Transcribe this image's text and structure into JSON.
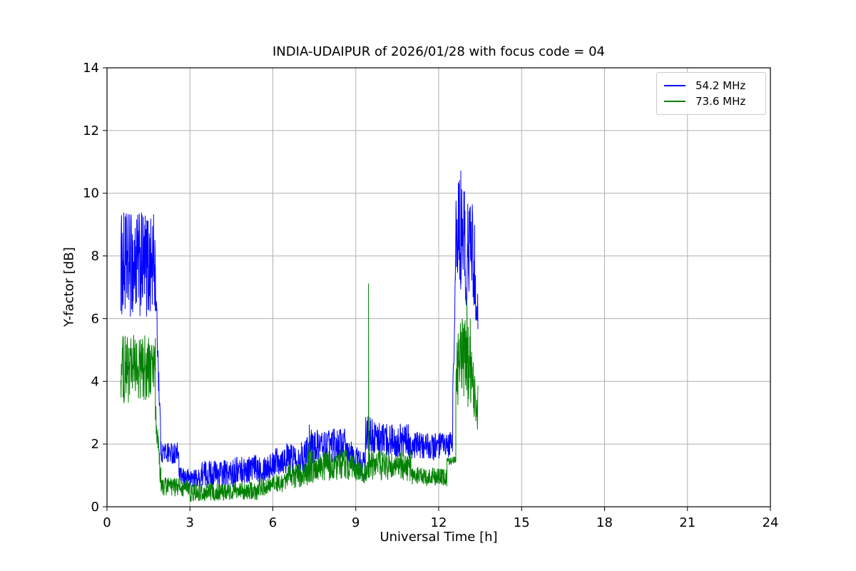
{
  "chart_data": {
    "type": "line",
    "title": "INDIA-UDAIPUR of 2026/01/28 with focus code = 04",
    "xlabel": "Universal Time [h]",
    "ylabel": "Y-factor [dB]",
    "xlim": [
      0,
      24
    ],
    "ylim": [
      0,
      14
    ],
    "xticks": [
      0,
      3,
      6,
      9,
      12,
      15,
      18,
      21,
      24
    ],
    "yticks": [
      0,
      2,
      4,
      6,
      8,
      10,
      12,
      14
    ],
    "grid": true,
    "grid_color": "#b0b0b0",
    "axis_color": "#000000",
    "legend_position": "upper right",
    "segments_format": "[x_start_h, x_end_h, y_mean_start_dB, y_mean_end_dB, noise_amplitude_dB]",
    "series": [
      {
        "name": "54.2 MHz",
        "color": "#0000ff",
        "x_range_h": [
          0.5,
          13.42
        ],
        "segments": [
          [
            0.5,
            1.75,
            7.7,
            7.7,
            1.7
          ],
          [
            1.75,
            1.95,
            7.2,
            2.1,
            0.6
          ],
          [
            1.95,
            2.6,
            1.75,
            1.7,
            0.35
          ],
          [
            2.6,
            3.4,
            0.95,
            0.9,
            0.3
          ],
          [
            3.4,
            4.6,
            1.05,
            1.05,
            0.45
          ],
          [
            4.6,
            6.0,
            1.15,
            1.3,
            0.45
          ],
          [
            6.0,
            7.2,
            1.5,
            1.6,
            0.5
          ],
          [
            7.2,
            7.45,
            1.9,
            1.9,
            0.6
          ],
          [
            7.45,
            8.6,
            1.9,
            2.0,
            0.55
          ],
          [
            8.6,
            9.35,
            1.8,
            1.3,
            0.45
          ],
          [
            9.35,
            9.65,
            2.3,
            2.3,
            0.6
          ],
          [
            9.65,
            10.9,
            2.15,
            2.1,
            0.55
          ],
          [
            10.9,
            12.35,
            1.95,
            1.9,
            0.45
          ],
          [
            12.35,
            12.5,
            1.9,
            2.2,
            0.4
          ],
          [
            12.5,
            12.6,
            2.5,
            7.2,
            0.9
          ],
          [
            12.6,
            12.95,
            8.6,
            8.5,
            1.9
          ],
          [
            12.95,
            13.05,
            7.3,
            7.4,
            1.0
          ],
          [
            13.05,
            13.3,
            8.4,
            8.0,
            1.7
          ],
          [
            13.3,
            13.42,
            7.0,
            6.1,
            0.8
          ]
        ],
        "spikes": [
          [
            7.32,
            2.62
          ],
          [
            12.8,
            10.72
          ]
        ]
      },
      {
        "name": "73.6 MHz",
        "color": "#008000",
        "x_range_h": [
          0.5,
          13.42
        ],
        "segments": [
          [
            0.5,
            1.75,
            4.4,
            4.4,
            1.1
          ],
          [
            1.75,
            1.95,
            3.0,
            0.85,
            0.45
          ],
          [
            1.95,
            3.0,
            0.65,
            0.6,
            0.3
          ],
          [
            3.0,
            5.5,
            0.45,
            0.5,
            0.3
          ],
          [
            5.5,
            6.5,
            0.65,
            0.8,
            0.32
          ],
          [
            6.5,
            7.25,
            0.95,
            1.05,
            0.4
          ],
          [
            7.25,
            7.45,
            1.3,
            1.3,
            0.7
          ],
          [
            7.45,
            9.0,
            1.3,
            1.35,
            0.5
          ],
          [
            9.0,
            9.42,
            1.1,
            1.1,
            0.35
          ],
          [
            9.42,
            9.5,
            1.2,
            1.2,
            0.3
          ],
          [
            9.5,
            11.0,
            1.35,
            1.3,
            0.5
          ],
          [
            11.0,
            12.3,
            1.0,
            0.95,
            0.3
          ],
          [
            12.3,
            12.62,
            1.45,
            1.5,
            0.12
          ],
          [
            12.62,
            13.0,
            4.2,
            5.0,
            1.4
          ],
          [
            13.0,
            13.2,
            4.8,
            4.6,
            1.6
          ],
          [
            13.2,
            13.42,
            4.0,
            3.1,
            0.9
          ]
        ],
        "spikes": [
          [
            7.33,
            2.45
          ],
          [
            9.46,
            7.12
          ],
          [
            13.02,
            6.62
          ]
        ]
      }
    ]
  }
}
